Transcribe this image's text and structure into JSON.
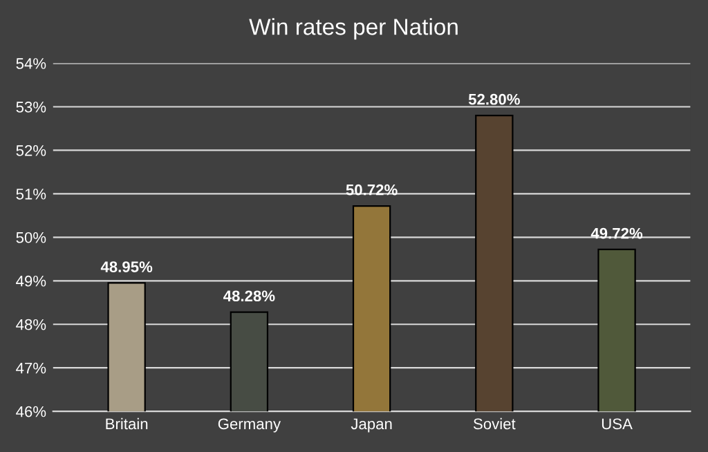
{
  "chart_data": {
    "type": "bar",
    "title": "Win rates per Nation",
    "categories": [
      "Britain",
      "Germany",
      "Japan",
      "Soviet",
      "USA"
    ],
    "values": [
      48.95,
      48.28,
      50.72,
      52.8,
      49.72
    ],
    "colors": [
      "#a89d86",
      "#474c44",
      "#93763a",
      "#574330",
      "#50593a"
    ],
    "value_labels": [
      "48.95%",
      "48.28%",
      "50.72%",
      "52.80%",
      "49.72%"
    ],
    "ylim": [
      46,
      54
    ],
    "yticks": [
      {
        "value": 46,
        "label": "46%"
      },
      {
        "value": 47,
        "label": "47%"
      },
      {
        "value": 48,
        "label": "48%"
      },
      {
        "value": 49,
        "label": "49%"
      },
      {
        "value": 50,
        "label": "50%"
      },
      {
        "value": 51,
        "label": "51%"
      },
      {
        "value": 52,
        "label": "52%"
      },
      {
        "value": 53,
        "label": "53%"
      },
      {
        "value": 54,
        "label": "54%"
      }
    ],
    "grid": "y",
    "legend": false
  }
}
